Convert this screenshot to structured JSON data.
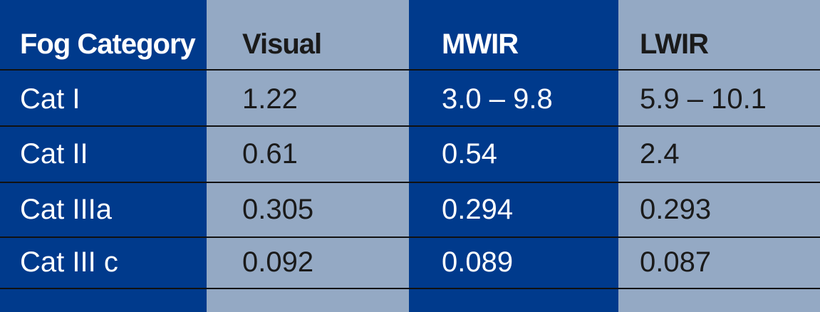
{
  "table": {
    "header": [
      "Fog Category",
      "Visual",
      "MWIR",
      "LWIR"
    ],
    "rows": [
      [
        "Cat I",
        "1.22",
        "3.0 – 9.8",
        "5.9 – 10.1"
      ],
      [
        "Cat II",
        "0.61",
        "0.54",
        "2.4"
      ],
      [
        "Cat IIIa",
        "0.305",
        "0.294",
        "0.293"
      ],
      [
        "Cat III c",
        "0.092",
        "0.089",
        "0.087"
      ]
    ]
  }
}
